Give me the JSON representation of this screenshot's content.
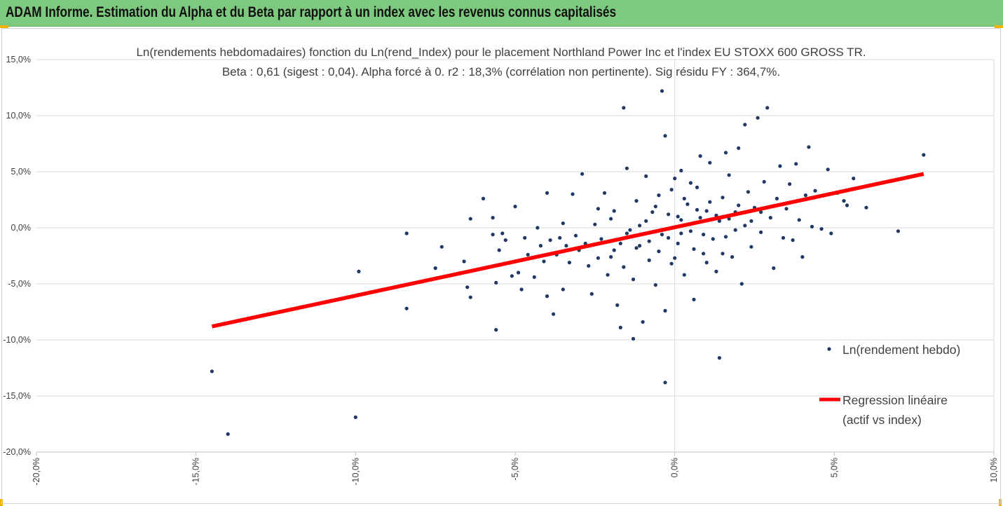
{
  "header": {
    "title": "ADAM Informe. Estimation du Alpha et du Beta par rapport à un index avec les revenus connus capitalisés"
  },
  "colors": {
    "banner": "#7dc97f",
    "points": "#1f3864",
    "regression": "#ff0000",
    "grid": "#d9d9d9",
    "accent": "#f2b300"
  },
  "chart_data": {
    "type": "scatter",
    "title": "Ln(rendements hebdomadaires) fonction du Ln(rend_Index) pour le placement Northland Power Inc et l'index EU STOXX 600 GROSS TR.",
    "subtitle": "Beta : 0,61 (sigest : 0,04). Alpha forcé à 0. r2 : 18,3% (corrélation non pertinente). Sig résidu FY : 364,7%.",
    "xlim": [
      -20,
      10
    ],
    "ylim": [
      -20,
      15
    ],
    "x_tick_labels": [
      "-20,0%",
      "-15,0%",
      "-10,0%",
      "-5,0%",
      "0,0%",
      "5,0%",
      "10,0%"
    ],
    "y_tick_labels": [
      "15,0%",
      "10,0%",
      "5,0%",
      "0,0%",
      "-5,0%",
      "-10,0%",
      "-15,0%",
      "-20,0%"
    ],
    "grid": "horizontal",
    "legend_position": "right",
    "series": [
      {
        "name": "Ln(rendement hebdo)",
        "type": "scatter",
        "points": [
          [
            -14.5,
            -12.8
          ],
          [
            -14.0,
            -18.4
          ],
          [
            -10.0,
            -16.9
          ],
          [
            -9.9,
            -3.9
          ],
          [
            -8.4,
            -7.2
          ],
          [
            -8.4,
            -0.5
          ],
          [
            -7.5,
            -3.6
          ],
          [
            -7.3,
            -1.7
          ],
          [
            -6.6,
            -3.0
          ],
          [
            -6.5,
            -5.3
          ],
          [
            -6.4,
            -6.2
          ],
          [
            -6.4,
            0.8
          ],
          [
            -6.0,
            2.6
          ],
          [
            -5.7,
            0.9
          ],
          [
            -5.7,
            -0.6
          ],
          [
            -5.6,
            -4.9
          ],
          [
            -5.6,
            -9.1
          ],
          [
            -5.5,
            -2.0
          ],
          [
            -5.4,
            -0.5
          ],
          [
            -5.3,
            -1.1
          ],
          [
            -5.1,
            -4.3
          ],
          [
            -5.0,
            1.9
          ],
          [
            -4.9,
            -4.0
          ],
          [
            -4.8,
            -5.5
          ],
          [
            -4.7,
            -0.9
          ],
          [
            -4.6,
            -2.4
          ],
          [
            -4.4,
            -4.4
          ],
          [
            -4.3,
            0.0
          ],
          [
            -4.2,
            -1.6
          ],
          [
            -4.1,
            -3.0
          ],
          [
            -4.0,
            3.1
          ],
          [
            -4.0,
            -6.1
          ],
          [
            -3.9,
            -1.1
          ],
          [
            -3.8,
            -7.7
          ],
          [
            -3.7,
            -2.4
          ],
          [
            -3.6,
            -0.9
          ],
          [
            -3.5,
            -5.5
          ],
          [
            -3.4,
            -1.6
          ],
          [
            -3.3,
            -3.1
          ],
          [
            -3.2,
            3.0
          ],
          [
            -3.1,
            -0.7
          ],
          [
            -3.0,
            -2.0
          ],
          [
            -2.9,
            4.8
          ],
          [
            -2.8,
            -1.4
          ],
          [
            -2.7,
            -3.4
          ],
          [
            -2.6,
            -5.9
          ],
          [
            -2.5,
            0.3
          ],
          [
            -2.4,
            -2.7
          ],
          [
            -2.3,
            -1.0
          ],
          [
            -2.2,
            3.1
          ],
          [
            -2.1,
            -4.2
          ],
          [
            -2.0,
            0.8
          ],
          [
            -1.9,
            -2.0
          ],
          [
            -1.9,
            1.5
          ],
          [
            -1.8,
            -6.9
          ],
          [
            -1.7,
            -1.4
          ],
          [
            -1.6,
            10.7
          ],
          [
            -1.6,
            -3.5
          ],
          [
            -1.5,
            5.3
          ],
          [
            -1.4,
            -0.2
          ],
          [
            -1.3,
            -4.6
          ],
          [
            -1.2,
            2.4
          ],
          [
            -1.1,
            -1.6
          ],
          [
            -1.0,
            -8.4
          ],
          [
            -0.9,
            0.6
          ],
          [
            -0.8,
            -2.9
          ],
          [
            -0.7,
            1.4
          ],
          [
            -0.6,
            -5.1
          ],
          [
            -0.5,
            2.9
          ],
          [
            -0.4,
            -0.6
          ],
          [
            -0.3,
            8.2
          ],
          [
            -0.3,
            -7.4
          ],
          [
            -0.2,
            1.2
          ],
          [
            -0.1,
            -3.2
          ],
          [
            0.0,
            4.4
          ],
          [
            0.1,
            -1.4
          ],
          [
            0.2,
            0.7
          ],
          [
            0.3,
            -4.2
          ],
          [
            0.4,
            2.1
          ],
          [
            0.5,
            -0.3
          ],
          [
            0.6,
            -6.4
          ],
          [
            0.7,
            3.6
          ],
          [
            0.8,
            0.9
          ],
          [
            0.9,
            -2.3
          ],
          [
            1.0,
            1.5
          ],
          [
            1.1,
            5.8
          ],
          [
            1.2,
            -1.0
          ],
          [
            1.3,
            -3.9
          ],
          [
            1.4,
            0.6
          ],
          [
            1.5,
            2.7
          ],
          [
            1.6,
            -0.8
          ],
          [
            1.7,
            4.7
          ],
          [
            1.8,
            -2.6
          ],
          [
            1.9,
            1.4
          ],
          [
            2.0,
            7.1
          ],
          [
            2.1,
            -5.0
          ],
          [
            2.2,
            0.2
          ],
          [
            2.3,
            3.2
          ],
          [
            2.4,
            -1.7
          ],
          [
            2.5,
            1.8
          ],
          [
            2.6,
            9.8
          ],
          [
            2.7,
            -0.4
          ],
          [
            2.8,
            4.1
          ],
          [
            2.9,
            10.7
          ],
          [
            3.0,
            0.9
          ],
          [
            3.1,
            -3.6
          ],
          [
            3.2,
            2.6
          ],
          [
            3.3,
            5.5
          ],
          [
            3.4,
            -0.9
          ],
          [
            3.5,
            1.7
          ],
          [
            3.6,
            3.9
          ],
          [
            3.7,
            -1.1
          ],
          [
            3.8,
            5.7
          ],
          [
            3.9,
            0.7
          ],
          [
            4.0,
            -2.6
          ],
          [
            4.1,
            2.9
          ],
          [
            4.2,
            7.2
          ],
          [
            4.3,
            0.1
          ],
          [
            4.4,
            3.3
          ],
          [
            4.6,
            -0.1
          ],
          [
            4.8,
            5.2
          ],
          [
            4.9,
            -0.5
          ],
          [
            5.1,
            3.1
          ],
          [
            5.3,
            2.4
          ],
          [
            5.4,
            2.0
          ],
          [
            5.6,
            4.4
          ],
          [
            6.0,
            1.8
          ],
          [
            7.0,
            -0.3
          ],
          [
            7.8,
            6.5
          ],
          [
            -0.4,
            12.2
          ],
          [
            -0.3,
            -13.8
          ],
          [
            1.4,
            -11.6
          ],
          [
            -1.3,
            -9.9
          ],
          [
            -1.7,
            -8.9
          ],
          [
            0.2,
            5.1
          ],
          [
            0.8,
            6.4
          ],
          [
            1.6,
            6.7
          ],
          [
            2.2,
            9.2
          ],
          [
            -0.9,
            4.6
          ],
          [
            -0.5,
            -2.1
          ],
          [
            0.3,
            2.6
          ],
          [
            0.6,
            -1.9
          ],
          [
            1.1,
            2.3
          ],
          [
            1.3,
            1.1
          ],
          [
            -0.2,
            -0.9
          ],
          [
            0.4,
            0.3
          ],
          [
            0.9,
            -0.6
          ],
          [
            1.7,
            0.8
          ],
          [
            -1.1,
            0.2
          ],
          [
            -0.6,
            1.9
          ],
          [
            0.0,
            -2.7
          ],
          [
            0.7,
            1.6
          ],
          [
            1.9,
            -0.2
          ],
          [
            2.4,
            0.6
          ],
          [
            -2.4,
            1.7
          ],
          [
            -1.5,
            -0.5
          ],
          [
            -0.8,
            -1.2
          ],
          [
            0.5,
            4.0
          ],
          [
            1.5,
            -2.3
          ],
          [
            2.0,
            2.0
          ],
          [
            -0.1,
            3.4
          ],
          [
            0.2,
            -0.5
          ],
          [
            1.0,
            -3.1
          ],
          [
            2.7,
            1.4
          ],
          [
            -3.5,
            0.4
          ],
          [
            -2.0,
            -2.6
          ],
          [
            -1.2,
            -1.8
          ],
          [
            0.1,
            1.0
          ]
        ]
      },
      {
        "name": "Regression linéaire (actif vs index)",
        "type": "line",
        "points": [
          [
            -14.5,
            -8.8
          ],
          [
            7.8,
            4.8
          ]
        ]
      }
    ],
    "legend": [
      "Ln(rendement hebdo)",
      "Regression linéaire",
      "(actif vs index)"
    ]
  }
}
